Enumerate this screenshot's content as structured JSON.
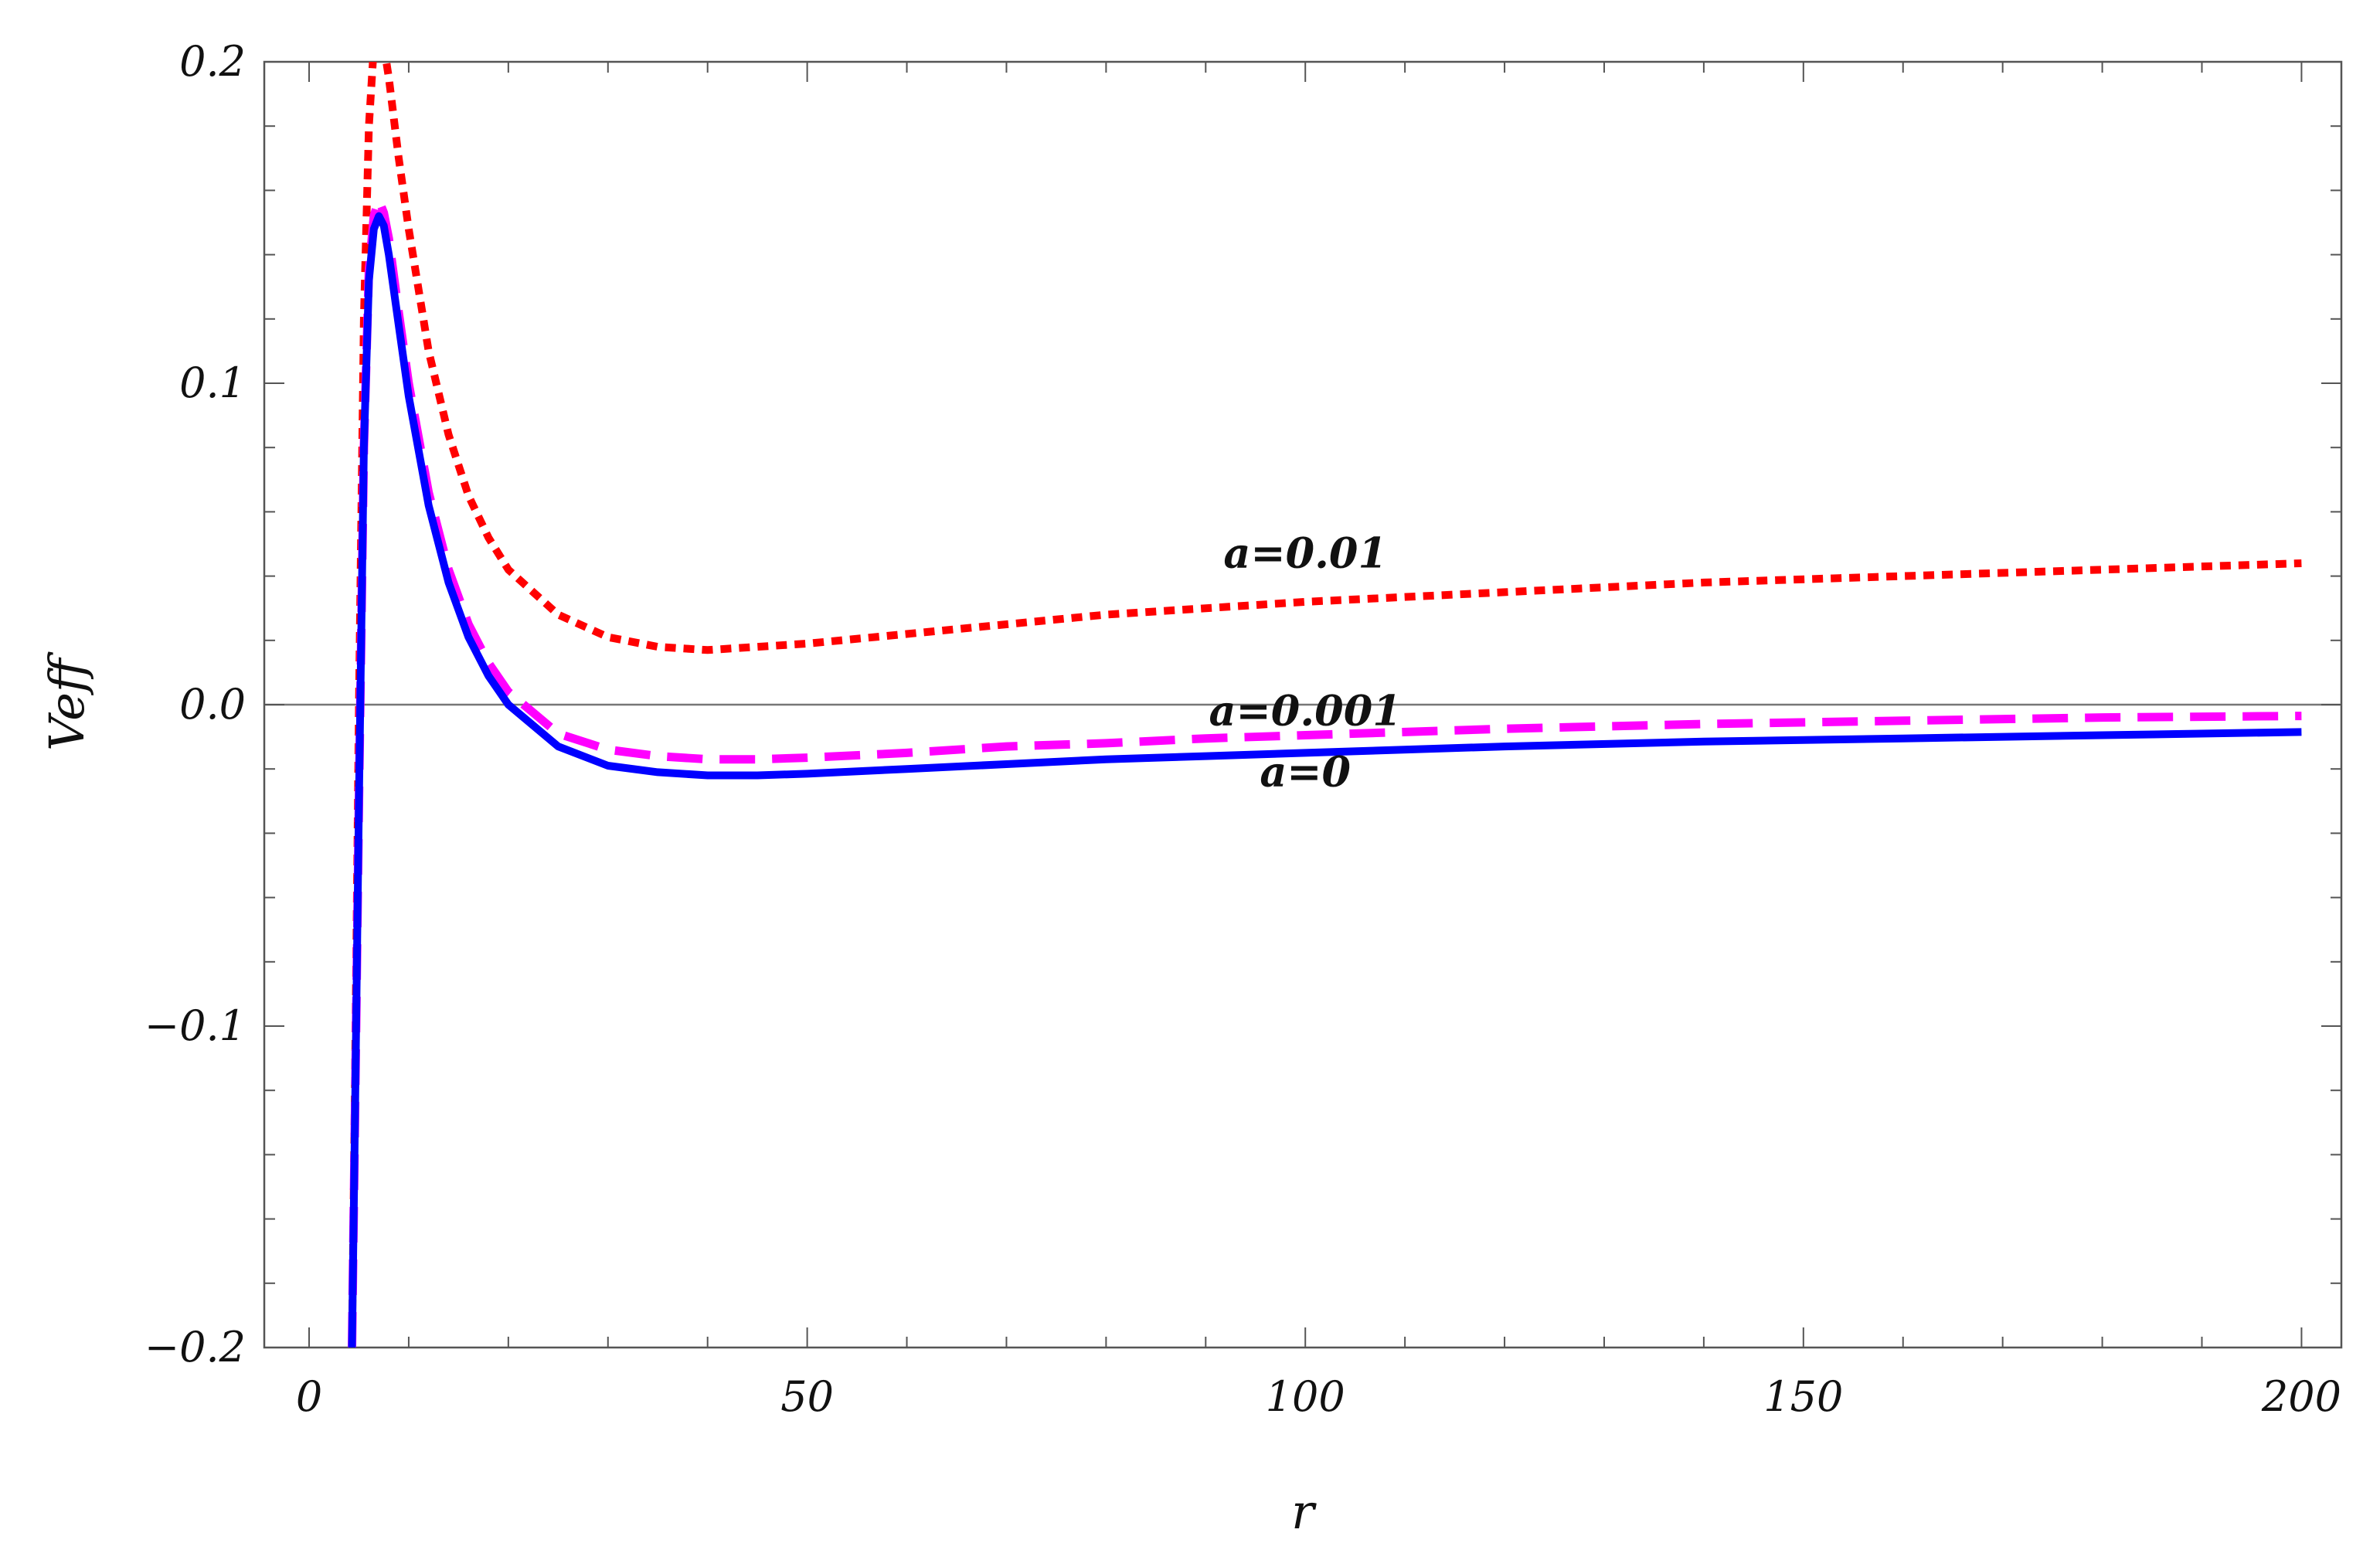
{
  "chart_data": {
    "type": "line",
    "title": "",
    "xlabel": "r",
    "ylabel": "Veff",
    "xlim": [
      -4.5,
      204
    ],
    "ylim": [
      -0.2,
      0.2
    ],
    "x_ticks": [
      0,
      50,
      100,
      150,
      200
    ],
    "x_tick_labels": [
      "0",
      "50",
      "100",
      "150",
      "200"
    ],
    "y_ticks": [
      -0.2,
      -0.1,
      0.0,
      0.1,
      0.2
    ],
    "y_tick_labels": [
      "−0.2",
      "−0.1",
      "0.0",
      "0.1",
      "0.2"
    ],
    "grid": false,
    "legend": "none",
    "series": [
      {
        "name": "a=0.01",
        "color": "#ff0000",
        "style": "dotted",
        "x": [
          4.3,
          4.6,
          5.0,
          5.5,
          6.0,
          6.5,
          7.0,
          7.5,
          8.0,
          9.0,
          10,
          12,
          14,
          16,
          18,
          20,
          25,
          30,
          35,
          40,
          45,
          50,
          60,
          70,
          80,
          90,
          100,
          120,
          140,
          160,
          180,
          200
        ],
        "y": [
          -0.2,
          -0.12,
          0.0,
          0.12,
          0.18,
          0.205,
          0.21,
          0.205,
          0.195,
          0.17,
          0.148,
          0.11,
          0.084,
          0.065,
          0.052,
          0.042,
          0.028,
          0.021,
          0.018,
          0.017,
          0.018,
          0.019,
          0.022,
          0.025,
          0.028,
          0.03,
          0.032,
          0.035,
          0.038,
          0.04,
          0.042,
          0.044
        ]
      },
      {
        "name": "a=0.001",
        "color": "#ff00ff",
        "style": "dashed",
        "x": [
          4.3,
          4.6,
          5.0,
          5.5,
          6.0,
          6.5,
          7.0,
          7.5,
          8.0,
          9.0,
          10,
          12,
          14,
          16,
          18,
          20,
          25,
          30,
          35,
          40,
          45,
          50,
          60,
          70,
          80,
          90,
          100,
          120,
          140,
          160,
          180,
          200
        ],
        "y": [
          -0.2,
          -0.13,
          -0.03,
          0.08,
          0.135,
          0.152,
          0.157,
          0.153,
          0.145,
          0.122,
          0.1,
          0.066,
          0.042,
          0.025,
          0.013,
          0.004,
          -0.009,
          -0.014,
          -0.016,
          -0.017,
          -0.017,
          -0.0165,
          -0.015,
          -0.013,
          -0.012,
          -0.0105,
          -0.0095,
          -0.0075,
          -0.006,
          -0.005,
          -0.004,
          -0.0035
        ]
      },
      {
        "name": "a=0",
        "color": "#0000ff",
        "style": "solid",
        "x": [
          4.3,
          4.6,
          5.0,
          5.5,
          6.0,
          6.5,
          7.0,
          7.5,
          8.0,
          9.0,
          10,
          12,
          14,
          16,
          18,
          20,
          25,
          30,
          35,
          40,
          45,
          50,
          60,
          70,
          80,
          90,
          100,
          120,
          140,
          160,
          180,
          200
        ],
        "y": [
          -0.2,
          -0.13,
          -0.03,
          0.08,
          0.132,
          0.148,
          0.152,
          0.149,
          0.14,
          0.118,
          0.096,
          0.062,
          0.038,
          0.021,
          0.009,
          0.0,
          -0.013,
          -0.019,
          -0.021,
          -0.022,
          -0.022,
          -0.0215,
          -0.02,
          -0.0185,
          -0.017,
          -0.016,
          -0.015,
          -0.013,
          -0.0115,
          -0.0105,
          -0.0095,
          -0.0085
        ]
      }
    ],
    "annotations": [
      {
        "text": "a=0.01",
        "x": 100,
        "y": 0.047
      },
      {
        "text": "a=0.001",
        "x": 100,
        "y": -0.002
      },
      {
        "text": "a=0",
        "x": 100,
        "y": -0.021
      }
    ]
  }
}
